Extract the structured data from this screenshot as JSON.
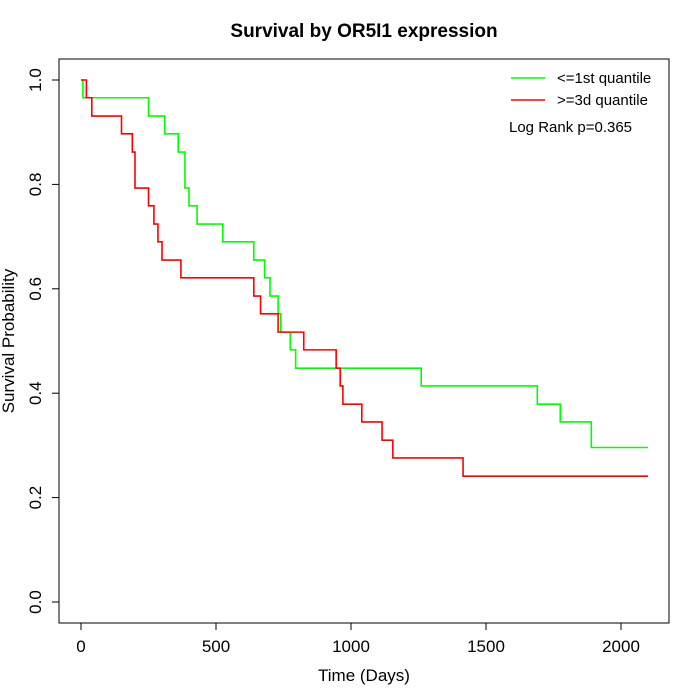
{
  "chart_data": {
    "type": "line",
    "subtype": "kaplan-meier step curve",
    "title": "Survival by OR5I1 expression",
    "xlabel": "Time (Days)",
    "ylabel": "Survival Probability",
    "xlim": [
      0,
      2100
    ],
    "ylim": [
      0,
      1
    ],
    "x_ticks": [
      0,
      500,
      1000,
      1500,
      2000
    ],
    "y_ticks": [
      0.0,
      0.2,
      0.4,
      0.6,
      0.8,
      1.0
    ],
    "x_tick_labels": [
      "0",
      "500",
      "1000",
      "1500",
      "2000"
    ],
    "y_tick_labels": [
      "0.0",
      "0.2",
      "0.4",
      "0.6",
      "0.8",
      "1.0"
    ],
    "grid": false,
    "legend_position": "top-right",
    "annotation": "Log Rank p=0.365",
    "series": [
      {
        "name": "<=1st quantile",
        "color": "#00ff00",
        "steps": [
          [
            0,
            1.0
          ],
          [
            7,
            0.966
          ],
          [
            250,
            0.931
          ],
          [
            310,
            0.897
          ],
          [
            360,
            0.862
          ],
          [
            385,
            0.793
          ],
          [
            400,
            0.759
          ],
          [
            430,
            0.724
          ],
          [
            525,
            0.69
          ],
          [
            640,
            0.655
          ],
          [
            680,
            0.621
          ],
          [
            700,
            0.586
          ],
          [
            730,
            0.552
          ],
          [
            740,
            0.517
          ],
          [
            775,
            0.483
          ],
          [
            795,
            0.448
          ],
          [
            1260,
            0.414
          ],
          [
            1690,
            0.379
          ],
          [
            1775,
            0.345
          ],
          [
            1890,
            0.296
          ],
          [
            2100,
            0.296
          ]
        ]
      },
      {
        "name": ">=3d quantile",
        "color": "#ff0000",
        "steps": [
          [
            0,
            1.0
          ],
          [
            20,
            0.966
          ],
          [
            40,
            0.931
          ],
          [
            150,
            0.897
          ],
          [
            190,
            0.862
          ],
          [
            200,
            0.793
          ],
          [
            250,
            0.759
          ],
          [
            270,
            0.724
          ],
          [
            285,
            0.69
          ],
          [
            300,
            0.655
          ],
          [
            370,
            0.621
          ],
          [
            640,
            0.586
          ],
          [
            665,
            0.552
          ],
          [
            730,
            0.517
          ],
          [
            825,
            0.483
          ],
          [
            945,
            0.448
          ],
          [
            960,
            0.414
          ],
          [
            970,
            0.379
          ],
          [
            1040,
            0.345
          ],
          [
            1115,
            0.31
          ],
          [
            1155,
            0.276
          ],
          [
            1415,
            0.241
          ],
          [
            2100,
            0.241
          ]
        ]
      }
    ]
  }
}
